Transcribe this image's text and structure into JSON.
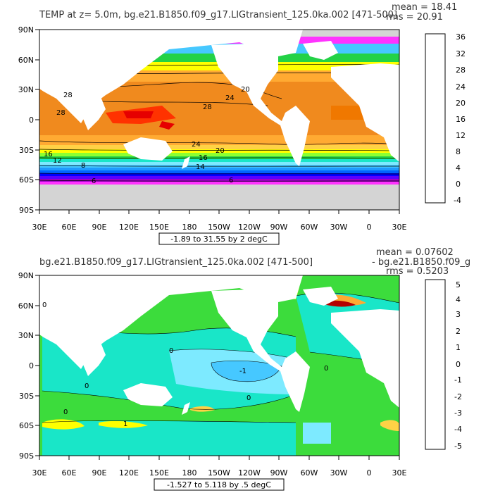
{
  "panels": [
    {
      "title": "TEMP at z=    5.0m, bg.e21.B1850.f09_g17.LIGtransient_125.0ka.002 [471-500]",
      "stats": {
        "mean": "mean = 18.41",
        "rms": "rms = 20.91"
      },
      "range_note": "-1.89 to 31.55 by 2 degC",
      "colorbar_ticks": [
        "36",
        "32",
        "28",
        "24",
        "20",
        "16",
        "12",
        "8",
        "4",
        "0",
        "-4"
      ],
      "colorbar_colors": [
        "#6b6b6b",
        "#cfcfcf",
        "#ff33ff",
        "#a000c8",
        "#5a00ff",
        "#0000ff",
        "#0064ff",
        "#1e9bff",
        "#46c8ff",
        "#7deaff",
        "#19e6c8",
        "#23d246",
        "#8cff32",
        "#ffff00",
        "#ffd246",
        "#ffaa32",
        "#ff8c1e",
        "#f07800",
        "#ff3200",
        "#e60000",
        "#b40000"
      ],
      "contour_labels": [
        "28",
        "28",
        "24",
        "20",
        "28",
        "24",
        "20",
        "16",
        "12",
        "8",
        "6",
        "16",
        "14",
        "6"
      ]
    },
    {
      "title": "bg.e21.B1850.f09_g17.LIGtransient_125.0ka.002 [471-500]",
      "title_overlap": "- bg.e21.B1850.f09_g",
      "stats": {
        "mean": "mean = 0.07602",
        "rms": "rms = 0.5203"
      },
      "range_note": "-1.527 to 5.118 by .5 degC",
      "colorbar_ticks": [
        "5",
        "4",
        "3",
        "2",
        "1",
        "0",
        "-1",
        "-2",
        "-3",
        "-4",
        "-5"
      ],
      "colorbar_colors": [
        "#6b6b6b",
        "#cfcfcf",
        "#ff33ff",
        "#a000c8",
        "#5a00ff",
        "#0000ff",
        "#0064ff",
        "#1e9bff",
        "#46c8ff",
        "#7deaff",
        "#19e6c8",
        "#23d246",
        "#8cff32",
        "#ffff00",
        "#ffd246",
        "#ffaa32",
        "#ff8c1e",
        "#f07800",
        "#ff3200",
        "#e60000",
        "#b40000"
      ],
      "contour_labels": [
        "0",
        "0",
        "0",
        "0",
        "-1",
        "1",
        "0",
        "0"
      ]
    }
  ],
  "axes": {
    "lat_ticks": [
      "90N",
      "60N",
      "30N",
      "0",
      "30S",
      "60S",
      "90S"
    ],
    "lon_ticks": [
      "30E",
      "60E",
      "90E",
      "120E",
      "150E",
      "180",
      "150W",
      "120W",
      "90W",
      "60W",
      "30W",
      "0",
      "30E"
    ]
  },
  "colors": {
    "land": "#ffffff",
    "sea_ice": "#d4d4d4",
    "frame": "#000000",
    "top_ocean_base": "#f08a1e",
    "bottom_ocean_base": "#3cdc3c"
  }
}
